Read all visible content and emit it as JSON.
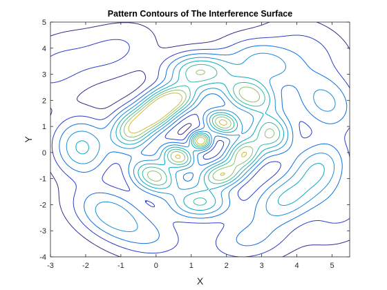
{
  "chart_data": {
    "type": "contour",
    "title": "Pattern Contours of The Interference Surface",
    "xlabel": "X",
    "ylabel": "Y",
    "xlim": [
      -3,
      5.5
    ],
    "ylim": [
      -4,
      5
    ],
    "xticks": [
      -3,
      -2,
      -1,
      0,
      1,
      2,
      3,
      4,
      5
    ],
    "yticks": [
      -4,
      -3,
      -2,
      -1,
      0,
      1,
      2,
      3,
      4,
      5
    ],
    "grid": false,
    "colormap": "parula",
    "levels": [
      0.04,
      0.12,
      0.22,
      0.34,
      0.47,
      0.6,
      0.73,
      0.86
    ],
    "level_colors": [
      "#352a87",
      "#2a3bcb",
      "#0a6ee1",
      "#1b8dd4",
      "#09a9c0",
      "#38b99e",
      "#8fbf6c",
      "#cfbb3b"
    ],
    "lobes": [
      {
        "x": 1.27,
        "y": 0.45,
        "peak": 1.0
      },
      {
        "x": 0.63,
        "y": -0.15,
        "peak": 0.86
      },
      {
        "x": 1.9,
        "y": 1.15,
        "peak": 0.9
      },
      {
        "x": 2.5,
        "y": -0.05,
        "peak": 0.82
      },
      {
        "x": 1.85,
        "y": -0.85,
        "peak": 0.82
      },
      {
        "x": 0.5,
        "y": 2.05,
        "peak": 0.86
      },
      {
        "x": 1.25,
        "y": 3.1,
        "peak": 0.72
      },
      {
        "x": 2.65,
        "y": 2.2,
        "peak": 0.82
      },
      {
        "x": -0.05,
        "y": 1.45,
        "peak": 0.9
      },
      {
        "x": -0.7,
        "y": 0.85,
        "peak": 0.76
      },
      {
        "x": -0.05,
        "y": -0.9,
        "peak": 0.8
      },
      {
        "x": 3.25,
        "y": 0.75,
        "peak": 0.74
      },
      {
        "x": 1.25,
        "y": -1.9,
        "peak": 0.62
      },
      {
        "x": -2.1,
        "y": 0.2,
        "peak": 0.5
      },
      {
        "x": 4.6,
        "y": -0.6,
        "peak": 0.46
      },
      {
        "x": 4.8,
        "y": 1.95,
        "peak": 0.38
      },
      {
        "x": 3.65,
        "y": -1.8,
        "peak": 0.46
      },
      {
        "x": -1.3,
        "y": -2.3,
        "peak": 0.4
      },
      {
        "x": 3.1,
        "y": 3.4,
        "peak": 0.4
      },
      {
        "x": 2.65,
        "y": -3.3,
        "peak": 0.24
      },
      {
        "x": -0.2,
        "y": -3.2,
        "peak": 0.2
      },
      {
        "x": -1.2,
        "y": 3.9,
        "peak": 0.14
      },
      {
        "x": 4.3,
        "y": 4.0,
        "peak": 0.14
      },
      {
        "x": -2.9,
        "y": 3.2,
        "peak": 0.14
      },
      {
        "x": 5.3,
        "y": -2.2,
        "peak": 0.14
      }
    ]
  }
}
